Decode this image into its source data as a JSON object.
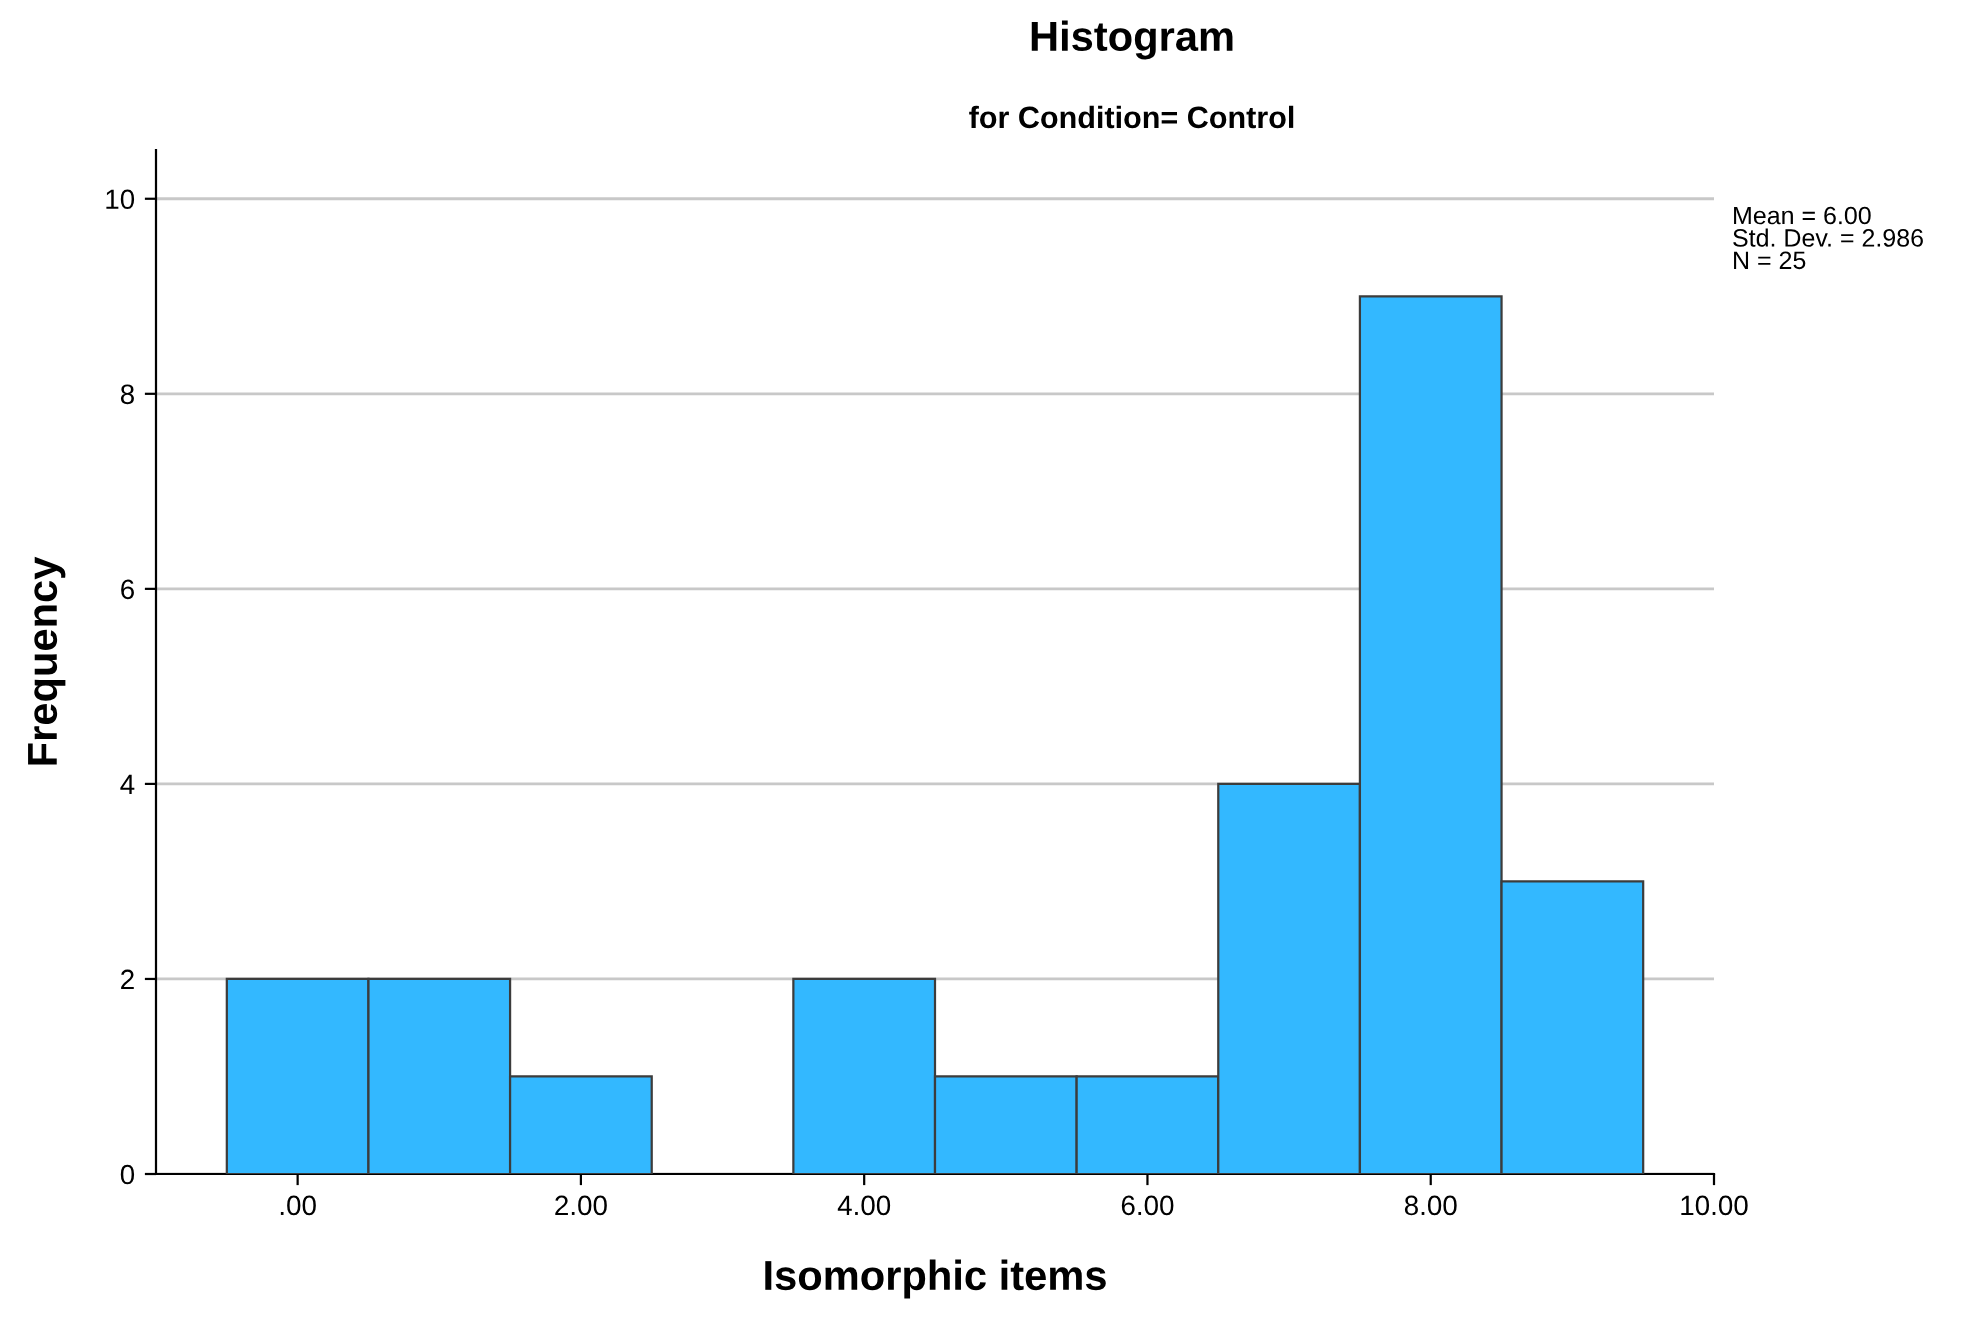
{
  "chart_data": {
    "type": "histogram",
    "title": "Histogram",
    "subtitle": "for Condition= Control",
    "xlabel": "Isomorphic items",
    "ylabel": "Frequency",
    "bins": [
      -0.5,
      0.5,
      1.5,
      2.5,
      3.5,
      4.5,
      5.5,
      6.5,
      7.5,
      8.5,
      9.5
    ],
    "values": [
      2,
      2,
      1,
      0,
      2,
      1,
      1,
      4,
      9,
      3
    ],
    "color": "#33b8ff",
    "xlim": [
      -1,
      10
    ],
    "xticks": [
      {
        "value": 0,
        "label": ".00"
      },
      {
        "value": 2,
        "label": "2.00"
      },
      {
        "value": 4,
        "label": "4.00"
      },
      {
        "value": 6,
        "label": "6.00"
      },
      {
        "value": 8,
        "label": "8.00"
      },
      {
        "value": 10,
        "label": "10.00"
      }
    ],
    "ylim": [
      0,
      10.5
    ],
    "yticks": [
      0,
      2,
      4,
      6,
      8,
      10
    ],
    "grid": "y",
    "annotations": [
      "Mean = 6.00\nStd. Dev. = 2.986\nN = 25"
    ]
  }
}
